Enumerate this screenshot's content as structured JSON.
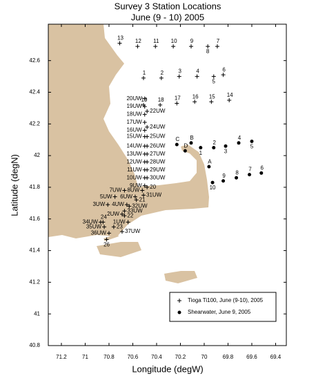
{
  "chart_data": {
    "type": "scatter",
    "title": "Survey 3 Station Locations",
    "subtitle": "June (9 - 10) 2005",
    "x_label": "Longitude (degW)",
    "y_label": "Latitude (degN)",
    "xlim": [
      71.31,
      69.31
    ],
    "ylim": [
      40.8,
      42.83
    ],
    "xticks": [
      71.2,
      71,
      70.8,
      70.6,
      70.4,
      70.2,
      70,
      69.8,
      69.6,
      69.4
    ],
    "yticks": [
      40.8,
      41,
      41.2,
      41.4,
      41.6,
      41.8,
      42,
      42.2,
      42.4,
      42.6
    ],
    "grid": false,
    "legend": "lower right",
    "series": [
      {
        "name": "Tioga Ti100, June (9-10), 2005",
        "marker": "plus",
        "color": "#000000",
        "point_labels": [
          "13",
          "12",
          "11",
          "10",
          "9",
          "8",
          "7",
          "1",
          "2",
          "3",
          "4",
          "5",
          "6",
          "19",
          "18",
          "17",
          "16",
          "15",
          "14",
          "20UW",
          "19UW",
          "18UW",
          "17UW",
          "16UW",
          "15UW",
          "14UW",
          "13UW",
          "12UW",
          "11UW",
          "10UW",
          "9UW",
          "22UW",
          "24UW",
          "25UW",
          "26UW",
          "27UW",
          "28UW",
          "29UW",
          "30UW",
          "20",
          "8UW",
          "31UW",
          "7UW",
          "6UW",
          "21",
          "5UW",
          "3UW",
          "4UW",
          "32UW",
          "33UW",
          "2UW",
          "22",
          "24",
          "1UW",
          "34UW",
          "35UW",
          "23",
          "36UW",
          "37UW",
          "26"
        ],
        "x": [
          70.71,
          70.56,
          70.41,
          70.26,
          70.11,
          69.97,
          69.89,
          70.51,
          70.36,
          70.21,
          70.06,
          69.92,
          69.84,
          70.51,
          70.37,
          70.23,
          70.08,
          69.94,
          69.79,
          70.5,
          70.5,
          70.5,
          70.5,
          70.5,
          70.5,
          70.5,
          70.5,
          70.5,
          70.5,
          70.5,
          70.5,
          70.48,
          70.48,
          70.48,
          70.48,
          70.48,
          70.48,
          70.48,
          70.48,
          70.48,
          70.52,
          70.51,
          70.67,
          70.58,
          70.57,
          70.75,
          70.81,
          70.65,
          70.63,
          70.67,
          70.69,
          70.67,
          70.85,
          70.64,
          70.87,
          70.84,
          70.76,
          70.8,
          70.69,
          70.82
        ],
        "values": [
          42.71,
          42.69,
          42.69,
          42.69,
          42.69,
          42.69,
          42.69,
          42.49,
          42.49,
          42.5,
          42.5,
          42.5,
          42.51,
          42.32,
          42.32,
          42.33,
          42.34,
          42.34,
          42.35,
          42.36,
          42.31,
          42.26,
          42.21,
          42.16,
          42.12,
          42.06,
          42.01,
          41.96,
          41.91,
          41.86,
          41.81,
          42.28,
          42.18,
          42.12,
          42.06,
          42.01,
          41.96,
          41.91,
          41.86,
          41.8,
          41.78,
          41.75,
          41.78,
          41.74,
          41.72,
          41.74,
          41.69,
          41.69,
          41.68,
          41.65,
          41.63,
          41.62,
          41.58,
          41.58,
          41.58,
          41.55,
          41.55,
          41.51,
          41.52,
          41.47
        ]
      },
      {
        "name": "Shearwater, June 9, 2005",
        "marker": "dot",
        "color": "#000000",
        "point_labels": [
          "C",
          "D",
          "B",
          "1",
          "A",
          "2",
          "3",
          "4",
          "5",
          "6",
          "7",
          "8",
          "9",
          "10"
        ],
        "x": [
          70.23,
          70.16,
          70.11,
          70.03,
          69.96,
          69.92,
          69.82,
          69.71,
          69.6,
          69.52,
          69.62,
          69.73,
          69.84,
          69.93
        ],
        "values": [
          42.07,
          42.03,
          42.08,
          42.05,
          41.93,
          42.05,
          42.06,
          42.08,
          42.09,
          41.89,
          41.88,
          41.86,
          41.84,
          41.83
        ]
      }
    ]
  }
}
